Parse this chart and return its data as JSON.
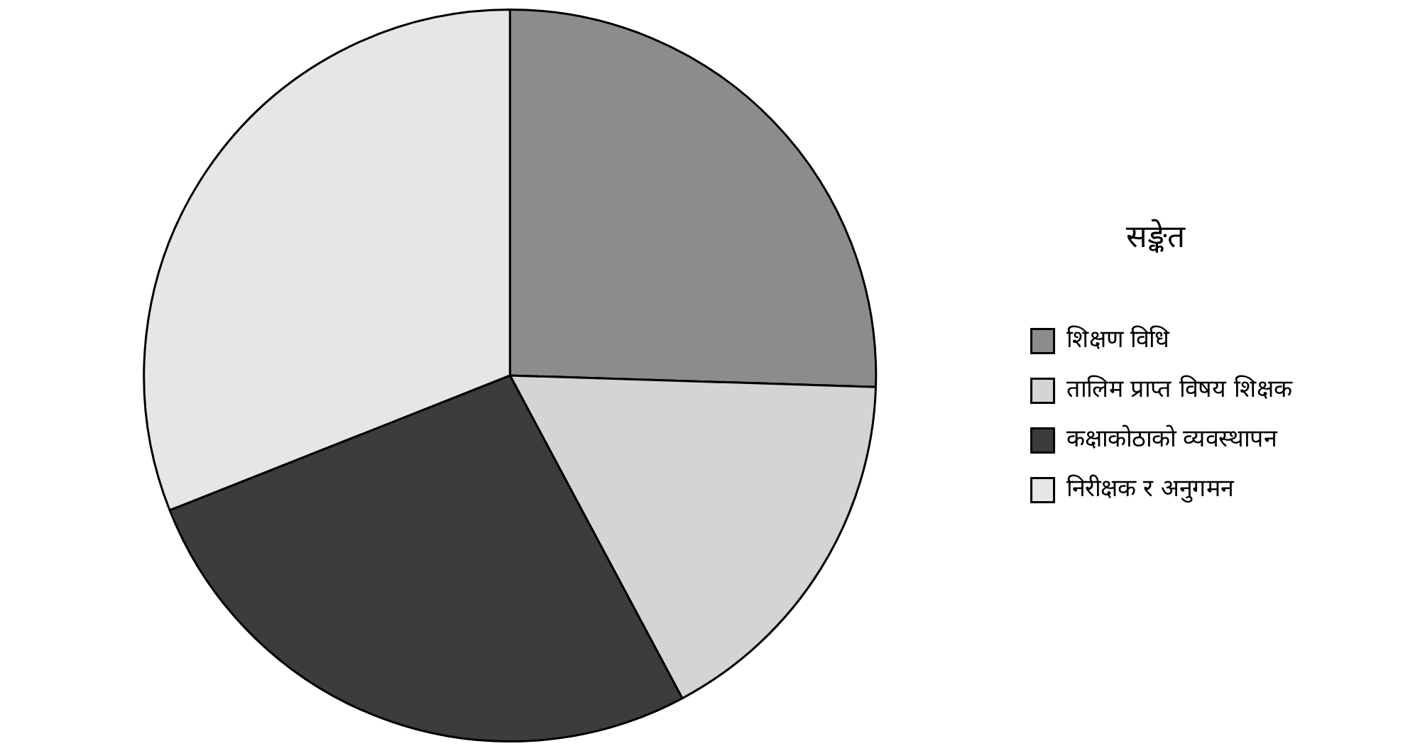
{
  "chart_data": {
    "type": "pie",
    "legend_title": "सङ्केत",
    "legend": "right",
    "categories": [
      "शिक्षण विधि",
      "तालिम प्राप्त विषय शिक्षक",
      "कक्षाकोठाको व्यवस्थापन",
      "निरीक्षक र अनुगमन"
    ],
    "values": [
      25.5,
      16.7,
      26.8,
      31.0
    ],
    "colors": [
      "#8c8c8c",
      "#d4d4d4",
      "#3c3c3c",
      "#e6e6e6"
    ]
  }
}
